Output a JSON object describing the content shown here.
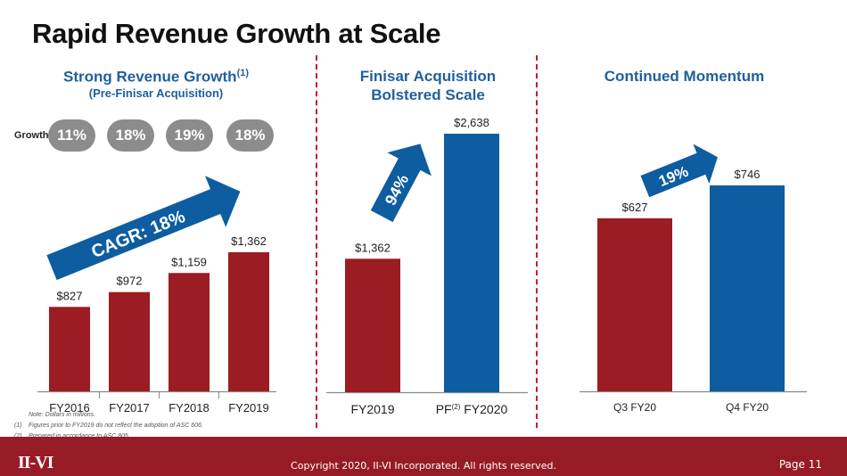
{
  "title": "Rapid Revenue Growth at Scale",
  "growth_label": "Growth",
  "growth_pills": [
    "11%",
    "18%",
    "19%",
    "18%"
  ],
  "sections": [
    {
      "title": "Strong Revenue Growth",
      "title_sup": "(1)",
      "subtitle": "(Pre-Finisar Acquisition)",
      "arrow_label": "CAGR: 18%"
    },
    {
      "title_line1": "Finisar Acquisition",
      "title_line2": "Bolstered Scale",
      "arrow_label": "94%"
    },
    {
      "title": "Continued Momentum",
      "arrow_label": "19%"
    }
  ],
  "chart_data": [
    {
      "type": "bar",
      "categories": [
        "FY2016",
        "FY2017",
        "FY2018",
        "FY2019"
      ],
      "values": [
        827,
        972,
        1159,
        1362
      ],
      "labels": [
        "$827",
        "$972",
        "$1,159",
        "$1,362"
      ],
      "colors": [
        "#9b1c22",
        "#9b1c22",
        "#9b1c22",
        "#9b1c22"
      ]
    },
    {
      "type": "bar",
      "categories": [
        "FY2019",
        "FY2020"
      ],
      "category_prefix": [
        "",
        "PF"
      ],
      "category_sup": [
        "",
        "(2)"
      ],
      "values": [
        1362,
        2638
      ],
      "labels": [
        "$1,362",
        "$2,638"
      ],
      "colors": [
        "#9b1c22",
        "#0d5da0"
      ]
    },
    {
      "type": "bar",
      "categories": [
        "Q3 FY20",
        "Q4 FY20"
      ],
      "values": [
        627,
        746
      ],
      "labels": [
        "$627",
        "$746"
      ],
      "colors": [
        "#9b1c22",
        "#0d5da0"
      ]
    }
  ],
  "notes": [
    {
      "num": "",
      "text": "Note: Dollars in millions."
    },
    {
      "num": "(1)",
      "text": "Figures prior to FY2019 do not reflect the adoption of ASC 606."
    },
    {
      "num": "(2)",
      "text": "Prepared in accordance to ASC 805."
    }
  ],
  "footer": {
    "copyright": "Copyright 2020, II-VI Incorporated. All rights reserved.",
    "page": "Page 11",
    "logo": "II-VI"
  },
  "colors": {
    "red": "#9b1c22",
    "blue": "#0d5da0",
    "heading_blue": "#1f5f9c",
    "footer": "#971b24",
    "pill": "#8c8c8c"
  }
}
